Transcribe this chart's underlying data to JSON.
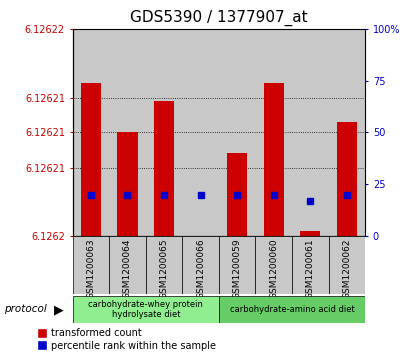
{
  "title": "GDS5390 / 1377907_at",
  "samples": [
    "GSM1200063",
    "GSM1200064",
    "GSM1200065",
    "GSM1200066",
    "GSM1200059",
    "GSM1200060",
    "GSM1200061",
    "GSM1200062"
  ],
  "red_values": [
    6.1262148,
    6.12621,
    6.126213,
    6.1262,
    6.126208,
    6.1262148,
    6.1262005,
    6.126211
  ],
  "blue_values": [
    20,
    20,
    20,
    20,
    20,
    20,
    17,
    20
  ],
  "y_min": 6.1262,
  "y_max": 6.12622,
  "left_ticks": [
    6.1262,
    6.1262066,
    6.12621,
    6.1262133,
    6.12622
  ],
  "left_tick_labels": [
    "6.1262",
    "6.12621",
    "6.12621",
    "6.12621",
    "6.12622"
  ],
  "right_y_ticks": [
    0,
    25,
    50,
    75,
    100
  ],
  "right_y_tick_labels": [
    "0",
    "25",
    "50",
    "75",
    "100%"
  ],
  "protocol_groups": [
    {
      "label": "carbohydrate-whey protein\nhydrolysate diet",
      "start": 0,
      "end": 4,
      "color": "#90EE90"
    },
    {
      "label": "carbohydrate-amino acid diet",
      "start": 4,
      "end": 8,
      "color": "#66CC66"
    }
  ],
  "bar_color": "#CC0000",
  "blue_color": "#0000CC",
  "col_bg_color": "#C8C8C8",
  "title_fontsize": 11,
  "tick_label_color_left": "#CC0000",
  "tick_label_color_right": "#0000CC",
  "figsize": [
    4.15,
    3.63
  ],
  "dpi": 100
}
